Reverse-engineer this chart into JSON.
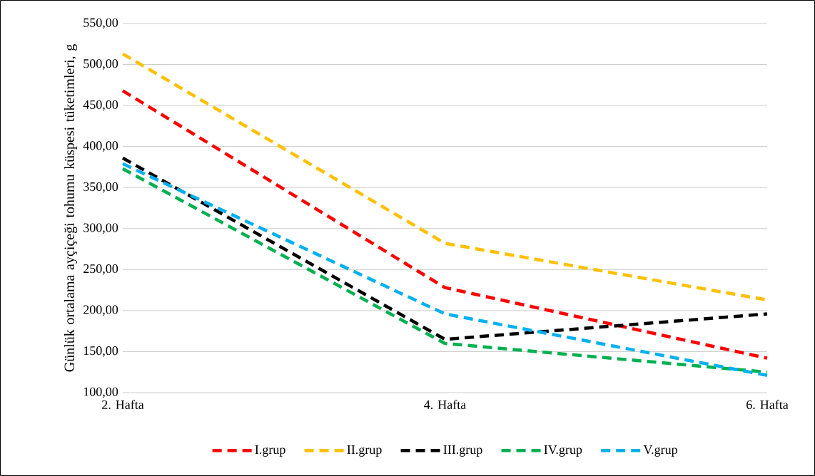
{
  "chart_data": {
    "type": "line",
    "ylabel": "Günlük ortalama ayçiçeği tohumu küspesi tüketimleri, g",
    "categories": [
      "2. Hafta",
      "4. Hafta",
      "6. Hafta"
    ],
    "series": [
      {
        "name": "I.grup",
        "color": "#ff0000",
        "values": [
          468,
          228,
          142
        ]
      },
      {
        "name": "II.grup",
        "color": "#ffc000",
        "values": [
          513,
          282,
          213
        ]
      },
      {
        "name": "III.grup",
        "color": "#000000",
        "values": [
          386,
          165,
          196
        ]
      },
      {
        "name": "IV.grup",
        "color": "#00b050",
        "values": [
          373,
          160,
          125
        ]
      },
      {
        "name": "V.grup",
        "color": "#00b0f0",
        "values": [
          379,
          196,
          121
        ]
      }
    ],
    "ylim": [
      100,
      550
    ],
    "yticks": [
      {
        "value": 100,
        "label": "100,00"
      },
      {
        "value": 150,
        "label": "150,00"
      },
      {
        "value": 200,
        "label": "200,00"
      },
      {
        "value": 250,
        "label": "250,00"
      },
      {
        "value": 300,
        "label": "300,00"
      },
      {
        "value": 350,
        "label": "350,00"
      },
      {
        "value": 400,
        "label": "400,00"
      },
      {
        "value": 450,
        "label": "450,00"
      },
      {
        "value": 500,
        "label": "500,00"
      },
      {
        "value": 550,
        "label": "550,00"
      }
    ],
    "grid": "y",
    "legend": "bottom",
    "line_style": "dashed",
    "marker": "none"
  }
}
